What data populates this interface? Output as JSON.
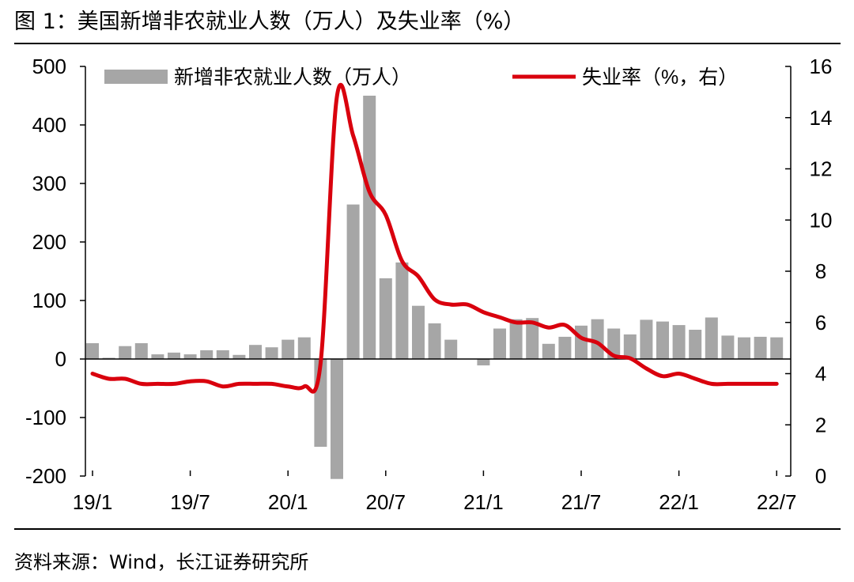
{
  "title": "图 1：美国新增非农就业人数（万人）及失业率（%）",
  "source": "资料来源：Wind，长江证券研究所",
  "colors": {
    "bars": "#a6a6a6",
    "line": "#d9000d",
    "axis": "#000000"
  },
  "chart_data": {
    "type": "bar+line",
    "categories": [
      "19/1",
      "19/2",
      "19/3",
      "19/4",
      "19/5",
      "19/6",
      "19/7",
      "19/8",
      "19/9",
      "19/10",
      "19/11",
      "19/12",
      "20/1",
      "20/2",
      "20/3",
      "20/4",
      "20/5",
      "20/6",
      "20/7",
      "20/8",
      "20/9",
      "20/10",
      "20/11",
      "20/12",
      "21/1",
      "21/2",
      "21/3",
      "21/4",
      "21/5",
      "21/6",
      "21/7",
      "21/8",
      "21/9",
      "21/10",
      "21/11",
      "21/12",
      "22/1",
      "22/2",
      "22/3",
      "22/4",
      "22/5",
      "22/6",
      "22/7"
    ],
    "x_tick_labels": [
      "19/1",
      "19/7",
      "20/1",
      "20/7",
      "21/1",
      "21/7",
      "22/1",
      "22/7"
    ],
    "series": [
      {
        "name": "新增非农就业人数（万人）",
        "type": "bar",
        "axis": "left",
        "values": [
          27,
          2,
          22,
          27,
          8,
          11,
          8,
          15,
          15,
          7,
          24,
          20,
          33,
          37,
          -150,
          -205,
          264,
          450,
          138,
          165,
          91,
          61,
          33,
          0,
          -11,
          52,
          68,
          70,
          26,
          38,
          57,
          68,
          52,
          42,
          67,
          64,
          58,
          50,
          71,
          40,
          37,
          38,
          37
        ]
      },
      {
        "name": "失业率（%，右）",
        "type": "line",
        "axis": "right",
        "values": [
          4.0,
          3.8,
          3.8,
          3.6,
          3.6,
          3.6,
          3.7,
          3.7,
          3.5,
          3.6,
          3.6,
          3.6,
          3.5,
          3.5,
          4.4,
          14.8,
          13.3,
          11.1,
          10.2,
          8.4,
          7.8,
          6.9,
          6.7,
          6.7,
          6.4,
          6.2,
          6.0,
          6.0,
          5.8,
          5.9,
          5.4,
          5.2,
          4.7,
          4.6,
          4.2,
          3.9,
          4.0,
          3.8,
          3.6,
          3.6,
          3.6,
          3.6,
          3.6
        ]
      }
    ],
    "left_axis": {
      "ticks": [
        -200,
        -100,
        0,
        100,
        200,
        300,
        400,
        500
      ],
      "range": [
        -200,
        500
      ]
    },
    "right_axis": {
      "ticks": [
        0,
        2,
        4,
        6,
        8,
        10,
        12,
        14,
        16
      ],
      "range": [
        0,
        16
      ]
    },
    "legend_position": "top",
    "grid": false
  }
}
